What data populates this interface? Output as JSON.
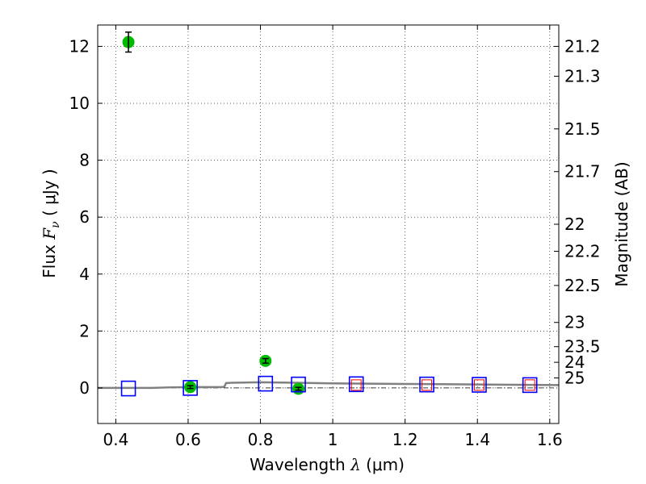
{
  "chart_data": {
    "type": "scatter",
    "title": "",
    "xlabel": "Wavelength  λ (μm)",
    "ylabel": "Flux  F_ν  ( μJy )",
    "ylabel_parts": {
      "prefix": "Flux  ",
      "symbol": "F",
      "subscript": "ν",
      "suffix": "  ( μJy )"
    },
    "xlabel_parts": {
      "prefix": "Wavelength  ",
      "symbol": "λ",
      "suffix": " (μm)"
    },
    "y2label": "Magnitude (AB)",
    "xlim": [
      0.35,
      1.625
    ],
    "ylim": [
      -1.25,
      12.75
    ],
    "grid": true,
    "x_ticks": [
      0.4,
      0.6,
      0.8,
      1.0,
      1.2,
      1.4,
      1.6
    ],
    "x_tick_labels": [
      "0.4",
      "0.6",
      "0.8",
      "1",
      "1.2",
      "1.4",
      "1.6"
    ],
    "y_ticks": [
      0,
      2,
      4,
      6,
      8,
      10,
      12
    ],
    "y_tick_labels": [
      "0",
      "2",
      "4",
      "6",
      "8",
      "10",
      "12"
    ],
    "y2_ticks": [
      {
        "label": "21.2",
        "flux": 12.0
      },
      {
        "label": "21.3",
        "flux": 10.95
      },
      {
        "label": "21.5",
        "flux": 9.1
      },
      {
        "label": "21.7",
        "flux": 7.6
      },
      {
        "label": "22",
        "flux": 5.75
      },
      {
        "label": "22.2",
        "flux": 4.8
      },
      {
        "label": "22.5",
        "flux": 3.6
      },
      {
        "label": "23",
        "flux": 2.3
      },
      {
        "label": "23.5",
        "flux": 1.45
      },
      {
        "label": "24",
        "flux": 0.9
      },
      {
        "label": "25",
        "flux": 0.35
      }
    ],
    "series": [
      {
        "marker": "filled-circle",
        "color": "#00bb00",
        "points": [
          {
            "x": 0.435,
            "y": 12.15,
            "err": 0.35
          },
          {
            "x": 0.606,
            "y": 0.03,
            "err": 0.05
          },
          {
            "x": 0.814,
            "y": 0.95,
            "err": 0.08
          },
          {
            "x": 0.905,
            "y": -0.03,
            "err": 0.05
          }
        ]
      },
      {
        "marker": "open-square",
        "color": "#0000ff",
        "points": [
          {
            "x": 0.435,
            "y": -0.02
          },
          {
            "x": 0.606,
            "y": 0.0
          },
          {
            "x": 0.814,
            "y": 0.15
          },
          {
            "x": 0.905,
            "y": 0.12
          },
          {
            "x": 1.065,
            "y": 0.13
          },
          {
            "x": 1.26,
            "y": 0.12
          },
          {
            "x": 1.405,
            "y": 0.11
          },
          {
            "x": 1.545,
            "y": 0.1
          }
        ]
      },
      {
        "marker": "open-square-small",
        "color": "#ff0000",
        "points": [
          {
            "x": 1.065,
            "y": 0.1
          },
          {
            "x": 1.26,
            "y": 0.1
          },
          {
            "x": 1.405,
            "y": 0.1
          },
          {
            "x": 1.545,
            "y": 0.1
          }
        ]
      }
    ],
    "model_curve": {
      "color": "#808080",
      "x": [
        0.35,
        0.5,
        0.55,
        0.6,
        0.65,
        0.69,
        0.7,
        0.705,
        0.72,
        0.8,
        0.9,
        1.0,
        1.1,
        1.2,
        1.3,
        1.4,
        1.5,
        1.625
      ],
      "y": [
        0.0,
        0.0,
        0.02,
        0.03,
        0.03,
        0.03,
        0.04,
        0.17,
        0.18,
        0.2,
        0.18,
        0.16,
        0.15,
        0.14,
        0.13,
        0.12,
        0.11,
        0.1
      ]
    },
    "zero_line": {
      "y": 0,
      "style": "dash-dot",
      "color": "#000000"
    }
  }
}
